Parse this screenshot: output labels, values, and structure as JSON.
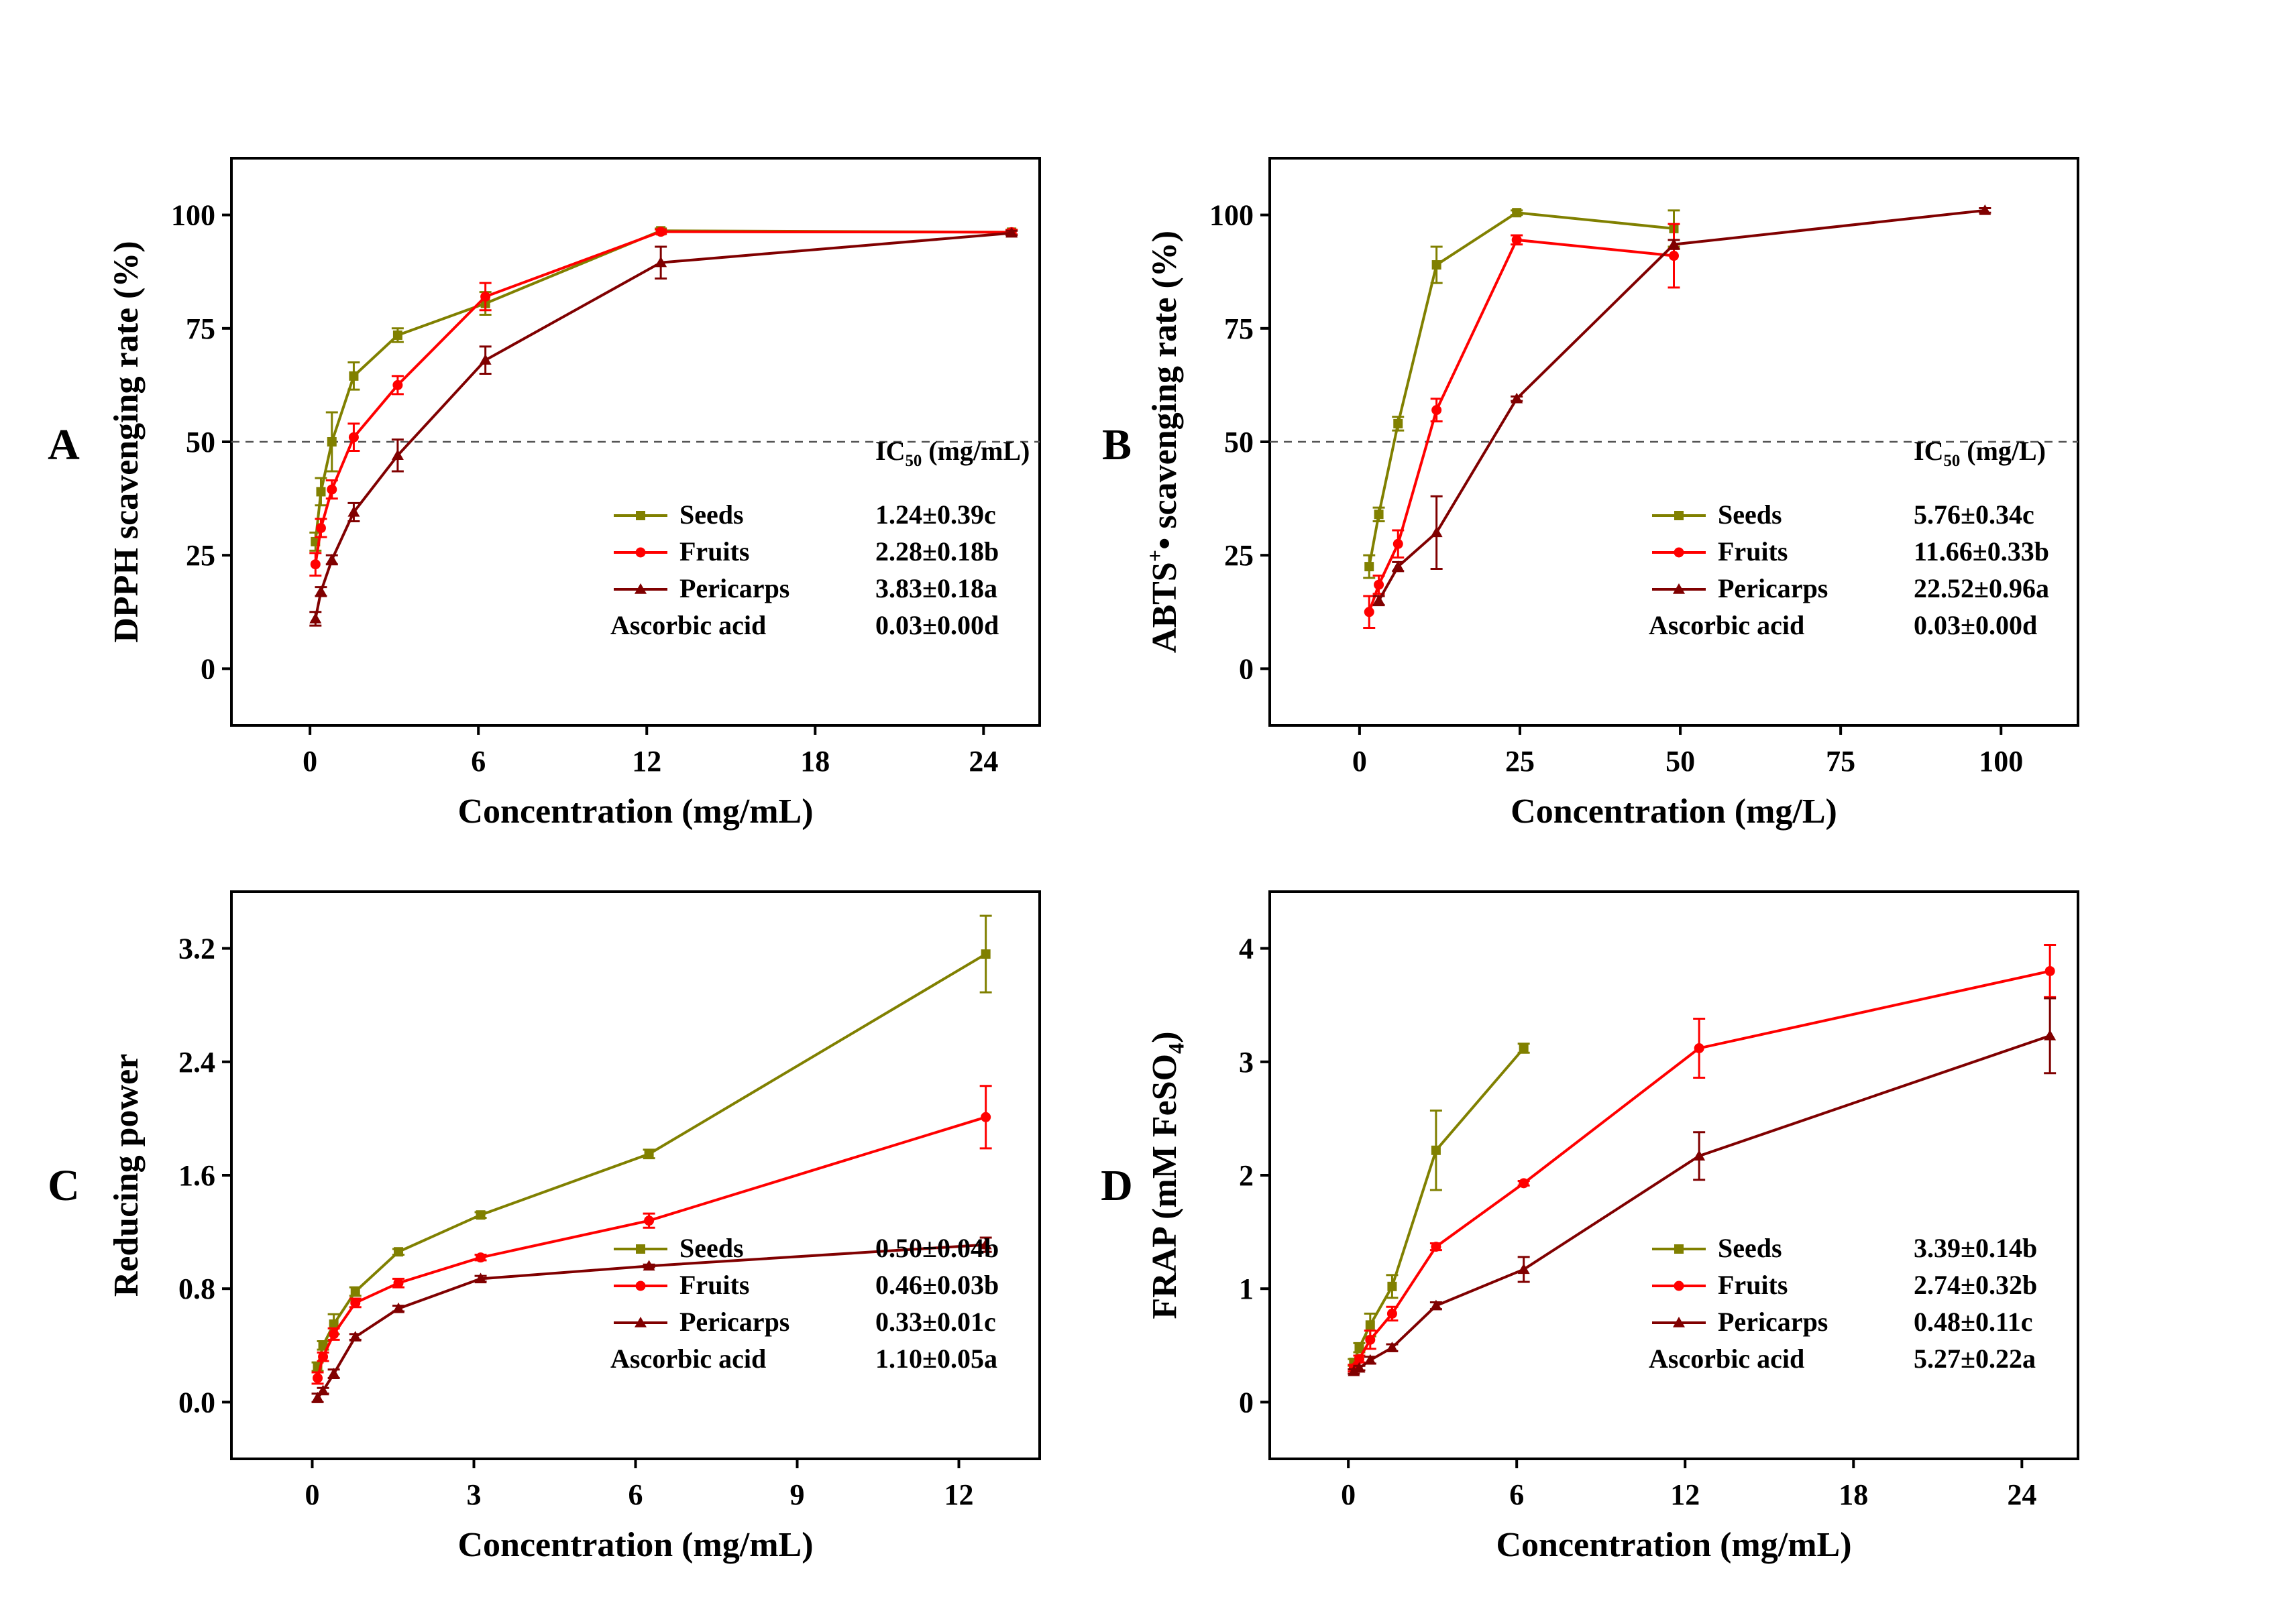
{
  "colors": {
    "seeds": "#808000",
    "fruits": "#ff0000",
    "pericarps": "#800000",
    "axis": "#000000",
    "reference": "#555555"
  },
  "chart_data": [
    {
      "panel_label": "A",
      "type": "line",
      "xlabel": "Concentration (mg/mL)",
      "ylabel": "DPPH scavenging rate (%)",
      "xlim": [
        -2.8,
        26
      ],
      "ylim": [
        -12.5,
        112.5
      ],
      "xticks": [
        0,
        6,
        12,
        18,
        24
      ],
      "xtick_labels": [
        "0",
        "6",
        "12",
        "18",
        "24"
      ],
      "yticks": [
        0,
        25,
        50,
        75,
        100
      ],
      "ytick_labels": [
        "0",
        "25",
        "50",
        "75",
        "100"
      ],
      "reference_line_y": 50,
      "legend": {
        "placement": "bottom-right",
        "header": {
          "prefix": "IC",
          "subscript": "50",
          "suffix": " (mg/mL)"
        },
        "entries": [
          {
            "name": "Seeds",
            "value": "1.24±0.39c"
          },
          {
            "name": "Fruits",
            "value": "2.28±0.18b"
          },
          {
            "name": "Pericarps",
            "value": "3.83±0.18a"
          },
          {
            "name": "Ascorbic acid",
            "value": "0.03±0.00d"
          }
        ]
      },
      "series": [
        {
          "name": "Seeds",
          "marker": "square",
          "color": "seeds",
          "x": [
            0.195,
            0.39,
            0.78,
            1.56,
            3.125,
            6.25,
            12.5,
            25
          ],
          "y": [
            28,
            39,
            50,
            64.5,
            73.5,
            80.5,
            96.5,
            96.2
          ],
          "err": [
            2,
            3,
            6.5,
            3,
            1.5,
            2.5,
            0.5,
            0.5
          ]
        },
        {
          "name": "Fruits",
          "marker": "circle",
          "color": "fruits",
          "x": [
            0.195,
            0.39,
            0.78,
            1.56,
            3.125,
            6.25,
            12.5,
            25
          ],
          "y": [
            23,
            31,
            39.5,
            51,
            62.5,
            82,
            96.3,
            96.2
          ],
          "err": [
            2.5,
            2,
            2,
            3,
            2,
            3,
            0.5,
            0.5
          ]
        },
        {
          "name": "Pericarps",
          "marker": "triangle",
          "color": "pericarps",
          "x": [
            0.195,
            0.39,
            0.78,
            1.56,
            3.125,
            6.25,
            12.5,
            25
          ],
          "y": [
            11,
            17,
            24,
            34.5,
            47,
            68,
            89.5,
            96
          ],
          "err": [
            1.5,
            1,
            1,
            2,
            3.5,
            3,
            3.5,
            0.5
          ]
        }
      ]
    },
    {
      "panel_label": "B",
      "type": "line",
      "xlabel": "Concentration (mg/L)",
      "ylabel": {
        "prefix": "ABTS",
        "superscript": "+",
        "suffix": "• scavenging rate (%)"
      },
      "xlim": [
        -14,
        112
      ],
      "ylim": [
        -12.5,
        112.5
      ],
      "xticks": [
        0,
        25,
        50,
        75,
        100
      ],
      "xtick_labels": [
        "0",
        "25",
        "50",
        "75",
        "100"
      ],
      "yticks": [
        0,
        25,
        50,
        75,
        100
      ],
      "ytick_labels": [
        "0",
        "25",
        "50",
        "75",
        "100"
      ],
      "reference_line_y": 50,
      "legend": {
        "placement": "bottom-right",
        "header": {
          "prefix": "IC",
          "subscript": "50",
          "suffix": " (mg/L)"
        },
        "entries": [
          {
            "name": "Seeds",
            "value": "5.76±0.34c"
          },
          {
            "name": "Fruits",
            "value": "11.66±0.33b"
          },
          {
            "name": "Pericarps",
            "value": "22.52±0.96a"
          },
          {
            "name": "Ascorbic acid",
            "value": "0.03±0.00d"
          }
        ]
      },
      "series": [
        {
          "name": "Seeds",
          "marker": "square",
          "color": "seeds",
          "x": [
            1.5,
            3,
            6,
            12,
            24.5,
            49
          ],
          "y": [
            22.5,
            34,
            54,
            89,
            100.5,
            97
          ],
          "err": [
            2.5,
            1.5,
            1.5,
            4,
            0.5,
            4
          ]
        },
        {
          "name": "Fruits",
          "marker": "circle",
          "color": "fruits",
          "x": [
            1.5,
            3,
            6,
            12,
            24.5,
            49
          ],
          "y": [
            12.5,
            18.5,
            27.5,
            57,
            94.5,
            91
          ],
          "err": [
            3.5,
            2,
            3,
            2.5,
            1,
            7
          ]
        },
        {
          "name": "Pericarps",
          "marker": "triangle",
          "color": "pericarps",
          "x": [
            3,
            6,
            12,
            24.5,
            49,
            97.5
          ],
          "y": [
            15,
            22.5,
            30,
            59.5,
            93.5,
            101
          ],
          "err": [
            1,
            1,
            8,
            0.5,
            1,
            0.5
          ]
        }
      ]
    },
    {
      "panel_label": "C",
      "type": "line",
      "xlabel": "Concentration (mg/mL)",
      "ylabel": "Reducing power",
      "xlim": [
        -1.5,
        13.5
      ],
      "ylim": [
        -0.4,
        3.6
      ],
      "xticks": [
        0,
        3,
        6,
        9,
        12
      ],
      "xtick_labels": [
        "0",
        "3",
        "6",
        "9",
        "12"
      ],
      "yticks": [
        0,
        0.8,
        1.6,
        2.4,
        3.2
      ],
      "ytick_labels": [
        "0.0",
        "0.8",
        "1.6",
        "2.4",
        "3.2"
      ],
      "legend": {
        "placement": "bottom-right",
        "entries": [
          {
            "name": "Seeds",
            "value": "0.50±0.04b"
          },
          {
            "name": "Fruits",
            "value": "0.46±0.03b"
          },
          {
            "name": "Pericarps",
            "value": "0.33±0.01c"
          },
          {
            "name": "Ascorbic acid",
            "value": "1.10±0.05a"
          }
        ]
      },
      "series": [
        {
          "name": "Seeds",
          "marker": "square",
          "color": "seeds",
          "x": [
            0.1,
            0.2,
            0.4,
            0.8,
            1.6,
            3.125,
            6.25,
            12.5
          ],
          "y": [
            0.25,
            0.4,
            0.55,
            0.78,
            1.06,
            1.32,
            1.75,
            3.16
          ],
          "err": [
            0.03,
            0.03,
            0.07,
            0.03,
            0.02,
            0.02,
            0.03,
            0.27
          ]
        },
        {
          "name": "Fruits",
          "marker": "circle",
          "color": "fruits",
          "x": [
            0.1,
            0.2,
            0.4,
            0.8,
            1.6,
            3.125,
            6.25,
            12.5
          ],
          "y": [
            0.17,
            0.32,
            0.48,
            0.7,
            0.84,
            1.02,
            1.28,
            2.01
          ],
          "err": [
            0.04,
            0.03,
            0.04,
            0.03,
            0.03,
            0.02,
            0.05,
            0.22
          ]
        },
        {
          "name": "Pericarps",
          "marker": "triangle",
          "color": "pericarps",
          "x": [
            0.1,
            0.2,
            0.4,
            0.8,
            1.6,
            3.125,
            6.25,
            12.5
          ],
          "y": [
            0.03,
            0.08,
            0.2,
            0.46,
            0.66,
            0.87,
            0.96,
            1.11
          ],
          "err": [
            0.03,
            0.02,
            0.03,
            0.02,
            0.02,
            0.02,
            0.01,
            0.05
          ]
        }
      ]
    },
    {
      "panel_label": "D",
      "type": "line",
      "xlabel": "Concentration (mg/mL)",
      "ylabel": {
        "prefix": "FRAP (mM FeSO",
        "subscript": "4",
        "suffix": ")"
      },
      "xlim": [
        -2.8,
        26
      ],
      "ylim": [
        -0.5,
        4.5
      ],
      "xticks": [
        0,
        6,
        12,
        18,
        24
      ],
      "xtick_labels": [
        "0",
        "6",
        "12",
        "18",
        "24"
      ],
      "yticks": [
        0,
        1,
        2,
        3,
        4
      ],
      "ytick_labels": [
        "0",
        "1",
        "2",
        "3",
        "4"
      ],
      "legend": {
        "placement": "bottom-right",
        "entries": [
          {
            "name": "Seeds",
            "value": "3.39±0.14b"
          },
          {
            "name": "Fruits",
            "value": "2.74±0.32b"
          },
          {
            "name": "Pericarps",
            "value": "0.48±0.11c"
          },
          {
            "name": "Ascorbic acid",
            "value": "5.27±0.22a"
          }
        ]
      },
      "series": [
        {
          "name": "Seeds",
          "marker": "square",
          "color": "seeds",
          "x": [
            0.195,
            0.39,
            0.78,
            1.56,
            3.125,
            6.25
          ],
          "y": [
            0.35,
            0.48,
            0.68,
            1.02,
            2.22,
            3.12
          ],
          "err": [
            0.03,
            0.04,
            0.1,
            0.1,
            0.35,
            0.04
          ]
        },
        {
          "name": "Fruits",
          "marker": "circle",
          "color": "fruits",
          "x": [
            0.195,
            0.39,
            0.78,
            1.56,
            3.125,
            6.25,
            12.5,
            25
          ],
          "y": [
            0.3,
            0.38,
            0.55,
            0.78,
            1.37,
            1.93,
            3.12,
            3.8
          ],
          "err": [
            0.03,
            0.03,
            0.08,
            0.06,
            0.03,
            0.02,
            0.26,
            0.23
          ]
        },
        {
          "name": "Pericarps",
          "marker": "triangle",
          "color": "pericarps",
          "x": [
            0.195,
            0.39,
            0.78,
            1.56,
            3.125,
            6.25,
            12.5,
            25
          ],
          "y": [
            0.27,
            0.3,
            0.37,
            0.48,
            0.85,
            1.17,
            2.17,
            3.23
          ],
          "err": [
            0.02,
            0.02,
            0.03,
            0.03,
            0.03,
            0.11,
            0.21,
            0.33
          ]
        }
      ]
    }
  ]
}
